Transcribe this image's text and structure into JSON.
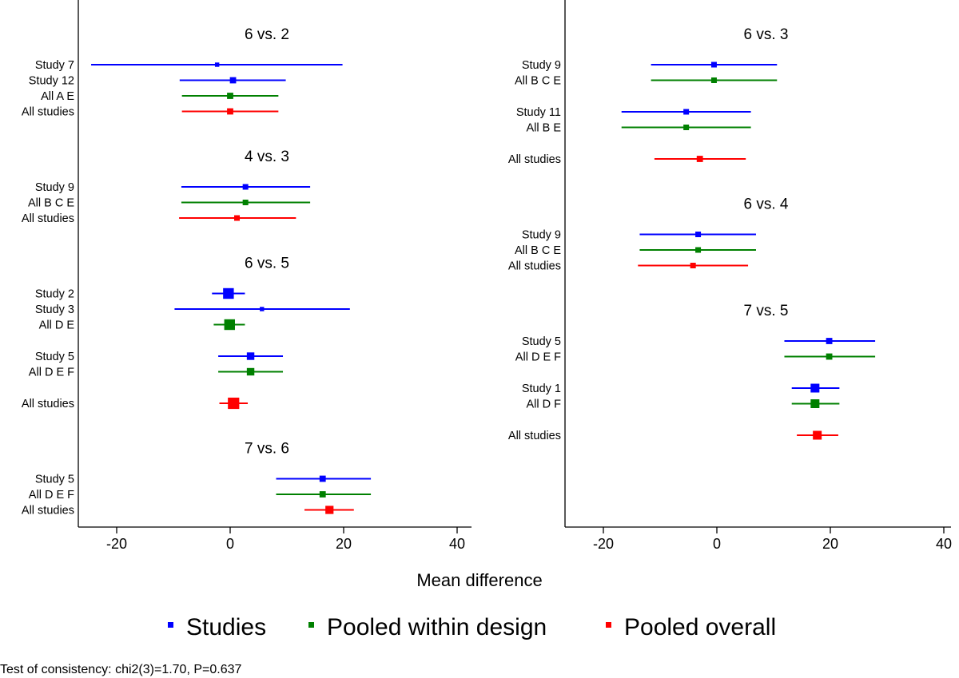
{
  "chart_data": [
    {
      "type": "forest",
      "xlim": [
        -26,
        41
      ],
      "xticks": [
        -20,
        0,
        20,
        40
      ],
      "groups": [
        {
          "title": "6 vs. 2",
          "rows": [
            {
              "label": "Study 7",
              "kind": "study",
              "est": -2.3,
              "lo": -24.5,
              "hi": 19.8,
              "weight": 0.3
            },
            {
              "label": "Study 12",
              "kind": "study",
              "est": 0.5,
              "lo": -8.9,
              "hi": 9.8,
              "weight": 0.6
            },
            {
              "label": "All A E",
              "kind": "design",
              "est": 0.0,
              "lo": -8.5,
              "hi": 8.5,
              "weight": 0.6
            },
            {
              "label": "All studies",
              "kind": "overall",
              "est": 0.0,
              "lo": -8.5,
              "hi": 8.5,
              "weight": 0.6
            }
          ]
        },
        {
          "title": "4 vs. 3",
          "rows": [
            {
              "label": "Study 9",
              "kind": "study",
              "est": 2.7,
              "lo": -8.6,
              "hi": 14.1,
              "weight": 0.5
            },
            {
              "label": "All B C E",
              "kind": "design",
              "est": 2.7,
              "lo": -8.6,
              "hi": 14.1,
              "weight": 0.5
            },
            {
              "label": "All studies",
              "kind": "overall",
              "est": 1.2,
              "lo": -9.0,
              "hi": 11.6,
              "weight": 0.5
            }
          ]
        },
        {
          "title": "6 vs. 5",
          "rows": [
            {
              "label": "Study 2",
              "kind": "study",
              "est": -0.3,
              "lo": -3.2,
              "hi": 2.6,
              "weight": 1.3
            },
            {
              "label": "Study 3",
              "kind": "study",
              "est": 5.6,
              "lo": -9.8,
              "hi": 21.1,
              "weight": 0.3
            },
            {
              "label": "All D E",
              "kind": "design",
              "est": -0.1,
              "lo": -2.9,
              "hi": 2.6,
              "weight": 1.3
            },
            {
              "gap": true
            },
            {
              "label": "Study 5",
              "kind": "study",
              "est": 3.6,
              "lo": -2.1,
              "hi": 9.3,
              "weight": 0.8
            },
            {
              "label": "All D E F",
              "kind": "design",
              "est": 3.6,
              "lo": -2.1,
              "hi": 9.3,
              "weight": 0.8
            },
            {
              "gap": true
            },
            {
              "label": "All studies",
              "kind": "overall",
              "est": 0.6,
              "lo": -1.9,
              "hi": 3.1,
              "weight": 1.4
            }
          ]
        },
        {
          "title": "7 vs. 6",
          "rows": [
            {
              "label": "Study 5",
              "kind": "study",
              "est": 16.3,
              "lo": 8.1,
              "hi": 24.8,
              "weight": 0.6
            },
            {
              "label": "All D E F",
              "kind": "design",
              "est": 16.3,
              "lo": 8.1,
              "hi": 24.8,
              "weight": 0.6
            },
            {
              "label": "All studies",
              "kind": "overall",
              "est": 17.5,
              "lo": 13.1,
              "hi": 21.8,
              "weight": 0.9
            }
          ]
        }
      ]
    },
    {
      "type": "forest",
      "xlim": [
        -26,
        41
      ],
      "xticks": [
        -20,
        0,
        20,
        40
      ],
      "groups": [
        {
          "title": "6 vs. 3",
          "rows": [
            {
              "label": "Study 9",
              "kind": "study",
              "est": -0.5,
              "lo": -11.6,
              "hi": 10.6,
              "weight": 0.5
            },
            {
              "label": "All B C E",
              "kind": "design",
              "est": -0.5,
              "lo": -11.6,
              "hi": 10.6,
              "weight": 0.5
            },
            {
              "gap": true
            },
            {
              "label": "Study 11",
              "kind": "study",
              "est": -5.4,
              "lo": -16.8,
              "hi": 6.0,
              "weight": 0.5
            },
            {
              "label": "All B E",
              "kind": "design",
              "est": -5.4,
              "lo": -16.8,
              "hi": 6.0,
              "weight": 0.5
            },
            {
              "gap": true
            },
            {
              "label": "All studies",
              "kind": "overall",
              "est": -3.0,
              "lo": -11.0,
              "hi": 5.1,
              "weight": 0.6
            }
          ]
        },
        {
          "title": "6 vs. 4",
          "rows": [
            {
              "label": "Study 9",
              "kind": "study",
              "est": -3.3,
              "lo": -13.6,
              "hi": 6.9,
              "weight": 0.5
            },
            {
              "label": "All B C E",
              "kind": "design",
              "est": -3.3,
              "lo": -13.6,
              "hi": 6.9,
              "weight": 0.5
            },
            {
              "label": "All studies",
              "kind": "overall",
              "est": -4.2,
              "lo": -13.9,
              "hi": 5.5,
              "weight": 0.5
            }
          ]
        },
        {
          "title": "7 vs. 5",
          "rows": [
            {
              "label": "Study 5",
              "kind": "study",
              "est": 19.8,
              "lo": 11.9,
              "hi": 27.9,
              "weight": 0.6
            },
            {
              "label": "All D E F",
              "kind": "design",
              "est": 19.8,
              "lo": 11.9,
              "hi": 27.9,
              "weight": 0.6
            },
            {
              "gap": true
            },
            {
              "label": "Study 1",
              "kind": "study",
              "est": 17.3,
              "lo": 13.2,
              "hi": 21.6,
              "weight": 1.0
            },
            {
              "label": "All D F",
              "kind": "design",
              "est": 17.3,
              "lo": 13.2,
              "hi": 21.6,
              "weight": 1.0
            },
            {
              "gap": true
            },
            {
              "label": "All studies",
              "kind": "overall",
              "est": 17.7,
              "lo": 14.1,
              "hi": 21.4,
              "weight": 1.0
            }
          ]
        }
      ]
    }
  ],
  "xlabel": "Mean difference",
  "legend": {
    "position": "bottom",
    "items": [
      {
        "label": "Studies",
        "color": "#0000ff"
      },
      {
        "label": "Pooled within design",
        "color": "#008000"
      },
      {
        "label": "Pooled overall",
        "color": "#ff0000"
      }
    ]
  },
  "colors": {
    "study": "#0000ff",
    "design": "#008000",
    "overall": "#ff0000"
  },
  "footnote": "Test of consistency: chi2(3)=1.70, P=0.637"
}
